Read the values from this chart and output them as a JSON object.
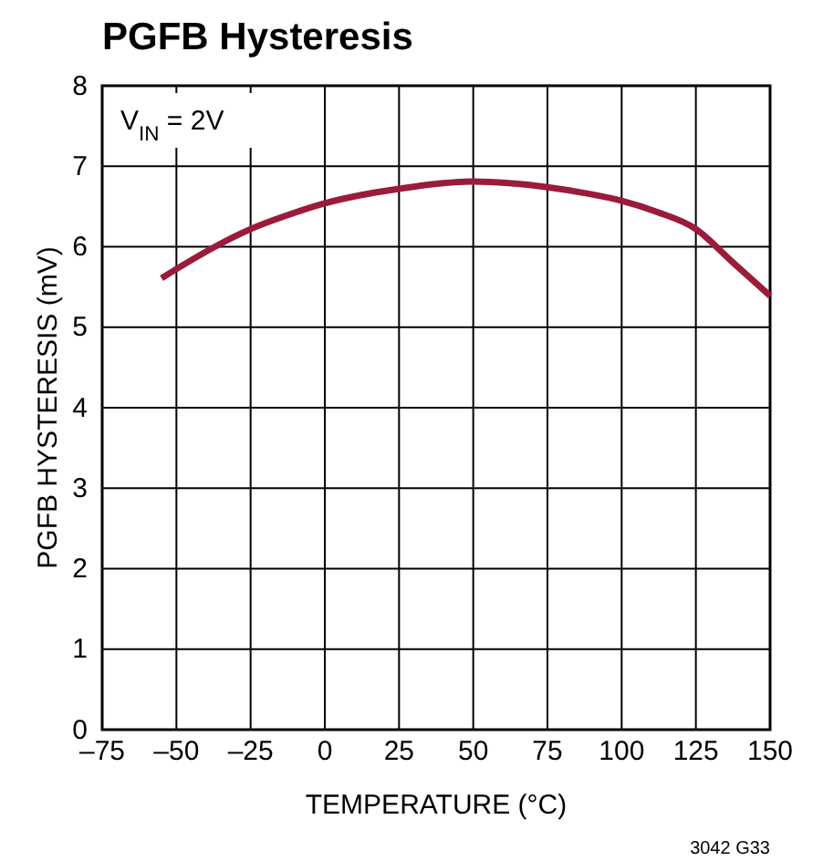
{
  "chart_data": {
    "type": "line",
    "title": "PGFB Hysteresis",
    "xlabel": "TEMPERATURE (°C)",
    "ylabel": "PGFB HYSTERESIS (mV)",
    "annotations": [
      "V$_{IN}$ = 2V",
      "3042 G33"
    ],
    "x": [
      -55,
      -37,
      -25,
      -12,
      0,
      12,
      25,
      37,
      50,
      62,
      75,
      87,
      100,
      112,
      125,
      137,
      150
    ],
    "series": [
      {
        "color": "#9b1b3a",
        "values": [
          5.61,
          6.0,
          6.22,
          6.4,
          6.54,
          6.64,
          6.72,
          6.78,
          6.81,
          6.79,
          6.74,
          6.67,
          6.57,
          6.43,
          6.22,
          5.82,
          5.39
        ]
      }
    ],
    "xlim": [
      -75,
      150
    ],
    "xticks": [
      {
        "value": -75,
        "label": "–75"
      },
      {
        "value": -50,
        "label": "–50"
      },
      {
        "value": -25,
        "label": "–25"
      },
      0,
      25,
      50,
      75,
      100,
      125,
      150
    ],
    "ylim": [
      0,
      8
    ],
    "yticks": [
      0,
      1,
      2,
      3,
      4,
      5,
      6,
      7,
      8
    ],
    "grid": true,
    "line_style": "solid",
    "marker": "none"
  }
}
